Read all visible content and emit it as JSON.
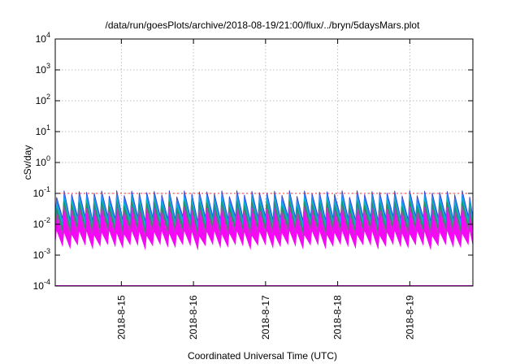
{
  "chart_data": {
    "type": "area",
    "title": "/data/run/goesPlots/archive/2018-08-19/21:00/flux/../bryn/5daysMars.plot",
    "xlabel": "Coordinated Universal Time (UTC)",
    "ylabel": "cSv/day",
    "yscale": "log",
    "ylim": [
      0.0001,
      10000
    ],
    "y_ticks": [
      {
        "value": 0.0001,
        "base": "10",
        "exp": "-4"
      },
      {
        "value": 0.001,
        "base": "10",
        "exp": "-3"
      },
      {
        "value": 0.01,
        "base": "10",
        "exp": "-2"
      },
      {
        "value": 0.1,
        "base": "10",
        "exp": "-1"
      },
      {
        "value": 1,
        "base": "10",
        "exp": "0"
      },
      {
        "value": 10,
        "base": "10",
        "exp": "1"
      },
      {
        "value": 100,
        "base": "10",
        "exp": "2"
      },
      {
        "value": 1000,
        "base": "10",
        "exp": "3"
      },
      {
        "value": 10000,
        "base": "10",
        "exp": "4"
      }
    ],
    "xlim": [
      "2018-08-14T02:00",
      "2018-08-19T21:00"
    ],
    "x_ticks": [
      "2018-8-15",
      "2018-8-16",
      "2018-8-17",
      "2018-8-18",
      "2018-8-19"
    ],
    "grid": true,
    "cycle_hours": 2.5,
    "series": [
      {
        "color": "#ff00ff",
        "peak": 0.02,
        "trough": 0.0035
      },
      {
        "color": "#cc33cc",
        "peak": 0.03,
        "trough": 0.005
      },
      {
        "color": "#2e8b57",
        "peak": 0.045,
        "trough": 0.007
      },
      {
        "color": "#00bfbf",
        "peak": 0.06,
        "trough": 0.009
      },
      {
        "color": "#1e90ff",
        "peak": 0.08,
        "trough": 0.012
      },
      {
        "color": "#3a3acd",
        "peak": 0.1,
        "trough": 0.015
      }
    ],
    "reference_lines": [
      {
        "value": 0.1,
        "color": "#ff3030"
      }
    ]
  }
}
